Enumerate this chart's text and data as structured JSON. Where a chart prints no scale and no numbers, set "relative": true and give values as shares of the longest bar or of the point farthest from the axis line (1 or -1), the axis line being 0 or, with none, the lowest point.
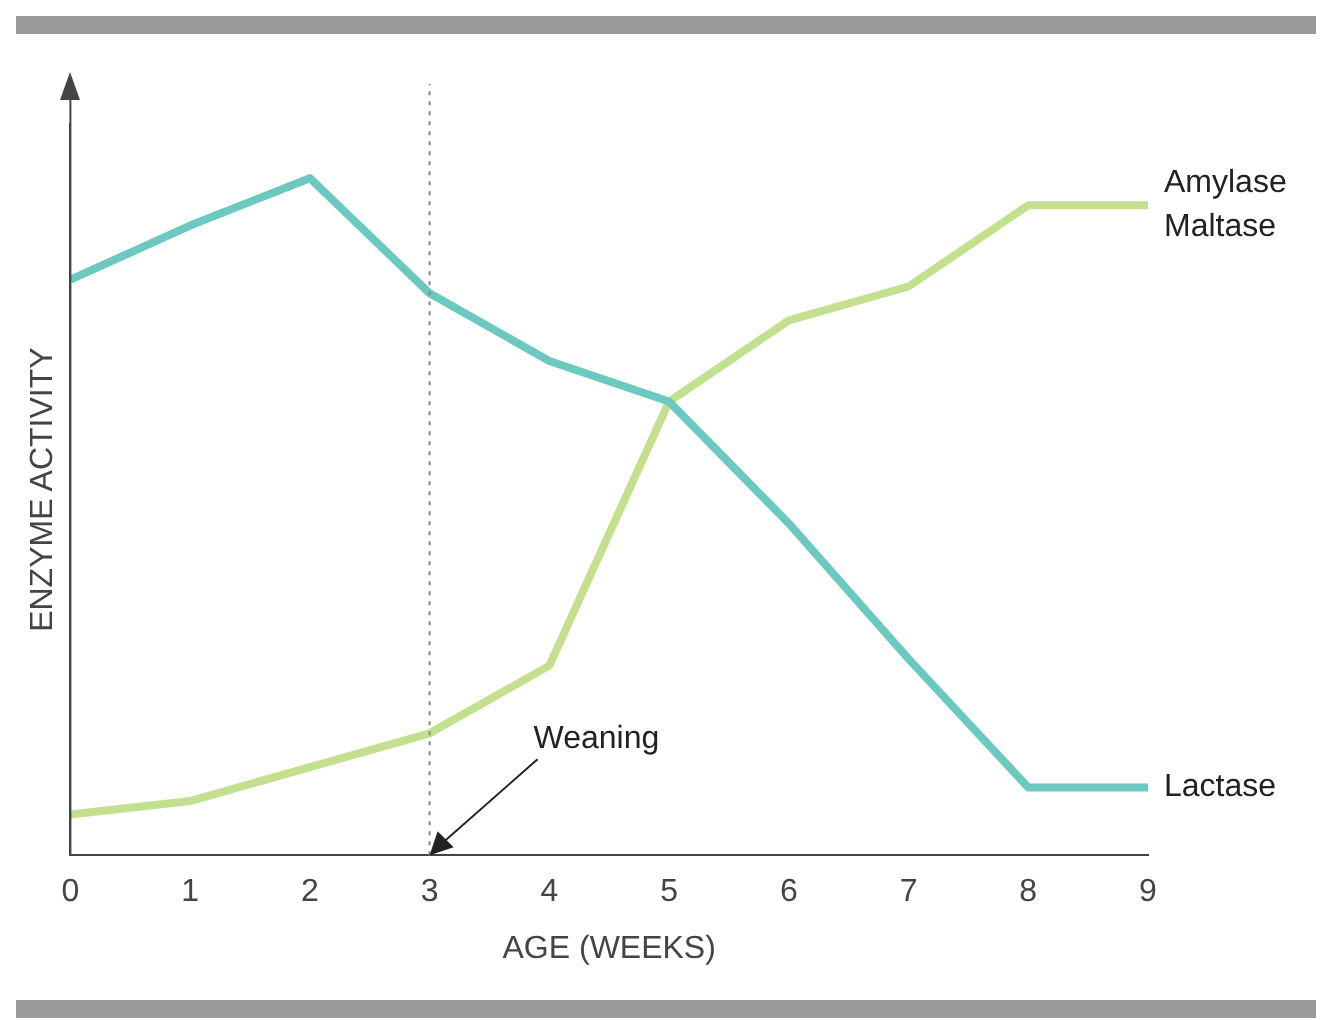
{
  "chart_data": {
    "type": "line",
    "relative": true,
    "xlabel": "AGE (WEEKS)",
    "ylabel": "ENZYME ACTIVITY",
    "x": [
      0,
      1,
      2,
      3,
      4,
      5,
      6,
      7,
      8,
      9
    ],
    "xlim": [
      0,
      9
    ],
    "xticks": [
      0,
      1,
      2,
      3,
      4,
      5,
      6,
      7,
      8,
      9
    ],
    "series": [
      {
        "name": "Lactase",
        "color": "#6cc9c0",
        "values": [
          0.85,
          0.93,
          1,
          0.83,
          0.73,
          0.67,
          0.49,
          0.29,
          0.1,
          0.1
        ]
      },
      {
        "name": "Amylase Maltase",
        "color": "#c2e08e",
        "values": [
          0.06,
          0.08,
          0.13,
          0.18,
          0.28,
          0.67,
          0.79,
          0.84,
          0.96,
          0.96
        ]
      }
    ],
    "ref_lines": [
      {
        "axis": "x",
        "value": 3,
        "color": "#888888",
        "line_style": "dotted"
      }
    ],
    "annotations": [
      {
        "text": "Weaning",
        "x": 3,
        "y": 0
      }
    ],
    "grid": false,
    "legend": false,
    "marker": "none",
    "line_style": "solid"
  }
}
